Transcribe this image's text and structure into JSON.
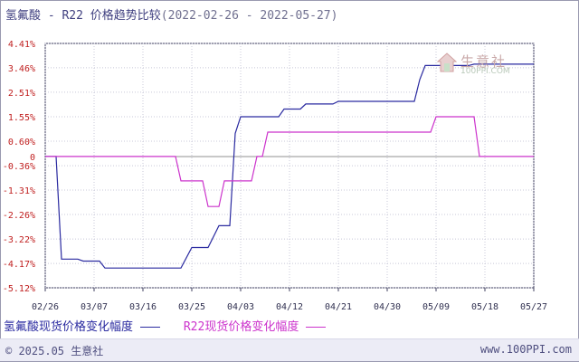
{
  "header": {
    "title": "氢氟酸 - R22 价格趋势比较",
    "range": "(2022-02-26 - 2022-05-27)"
  },
  "watermark": {
    "name": "生意社",
    "url": "100PPI.COM"
  },
  "footer": {
    "copyright": "© 2025.05 生意社",
    "site": "www.100PPI.com"
  },
  "colors": {
    "series_1": "#2a2aa0",
    "series_2": "#cc33cc",
    "axis": "#404060",
    "grid": "#c8c8d8",
    "zero_line": "#909090"
  },
  "chart_data": {
    "type": "line",
    "title": "氢氟酸 - R22 价格趋势比较",
    "xlabel": "",
    "ylabel": "",
    "x_ticks": [
      "02/26",
      "03/07",
      "03/16",
      "03/25",
      "04/03",
      "04/12",
      "04/21",
      "04/30",
      "05/09",
      "05/18",
      "05/27"
    ],
    "y_ticks": [
      "4.41%",
      "3.46%",
      "2.51%",
      "1.55%",
      "0.60%",
      "0",
      "-0.36%",
      "-1.31%",
      "-2.26%",
      "-3.22%",
      "-4.17%",
      "-5.12%"
    ],
    "y_tick_values": [
      4.41,
      3.46,
      2.51,
      1.55,
      0.6,
      0,
      -0.36,
      -1.31,
      -2.26,
      -3.22,
      -4.17,
      -5.12
    ],
    "xlim": [
      "2022-02-26",
      "2022-05-27"
    ],
    "ylim": [
      -5.12,
      4.41
    ],
    "grid": true,
    "legend_position": "bottom",
    "series": [
      {
        "name": "氢氟酸现货价格变化幅度",
        "color": "#2a2aa0",
        "points": [
          [
            "2022-02-26",
            0
          ],
          [
            "2022-02-28",
            0
          ],
          [
            "2022-03-01",
            -4
          ],
          [
            "2022-03-04",
            -4
          ],
          [
            "2022-03-05",
            -4.08
          ],
          [
            "2022-03-08",
            -4.08
          ],
          [
            "2022-03-09",
            -4.35
          ],
          [
            "2022-03-23",
            -4.35
          ],
          [
            "2022-03-25",
            -3.55
          ],
          [
            "2022-03-28",
            -3.55
          ],
          [
            "2022-03-30",
            -2.7
          ],
          [
            "2022-04-01",
            -2.7
          ],
          [
            "2022-04-02",
            0.9
          ],
          [
            "2022-04-03",
            1.55
          ],
          [
            "2022-04-10",
            1.55
          ],
          [
            "2022-04-11",
            1.85
          ],
          [
            "2022-04-14",
            1.85
          ],
          [
            "2022-04-15",
            2.05
          ],
          [
            "2022-04-20",
            2.05
          ],
          [
            "2022-04-21",
            2.15
          ],
          [
            "2022-05-05",
            2.15
          ],
          [
            "2022-05-06",
            3.0
          ],
          [
            "2022-05-07",
            3.55
          ],
          [
            "2022-05-15",
            3.55
          ],
          [
            "2022-05-16",
            3.6
          ],
          [
            "2022-05-27",
            3.6
          ]
        ]
      },
      {
        "name": "R22现货价格变化幅度",
        "color": "#cc33cc",
        "points": [
          [
            "2022-02-26",
            0
          ],
          [
            "2022-03-22",
            0
          ],
          [
            "2022-03-23",
            -0.95
          ],
          [
            "2022-03-27",
            -0.95
          ],
          [
            "2022-03-28",
            -1.95
          ],
          [
            "2022-03-30",
            -1.95
          ],
          [
            "2022-03-31",
            -0.95
          ],
          [
            "2022-04-05",
            -0.95
          ],
          [
            "2022-04-06",
            0
          ],
          [
            "2022-04-07",
            0
          ],
          [
            "2022-04-08",
            0.95
          ],
          [
            "2022-05-08",
            0.95
          ],
          [
            "2022-05-09",
            1.55
          ],
          [
            "2022-05-16",
            1.55
          ],
          [
            "2022-05-17",
            0
          ],
          [
            "2022-05-27",
            0
          ]
        ]
      }
    ]
  }
}
